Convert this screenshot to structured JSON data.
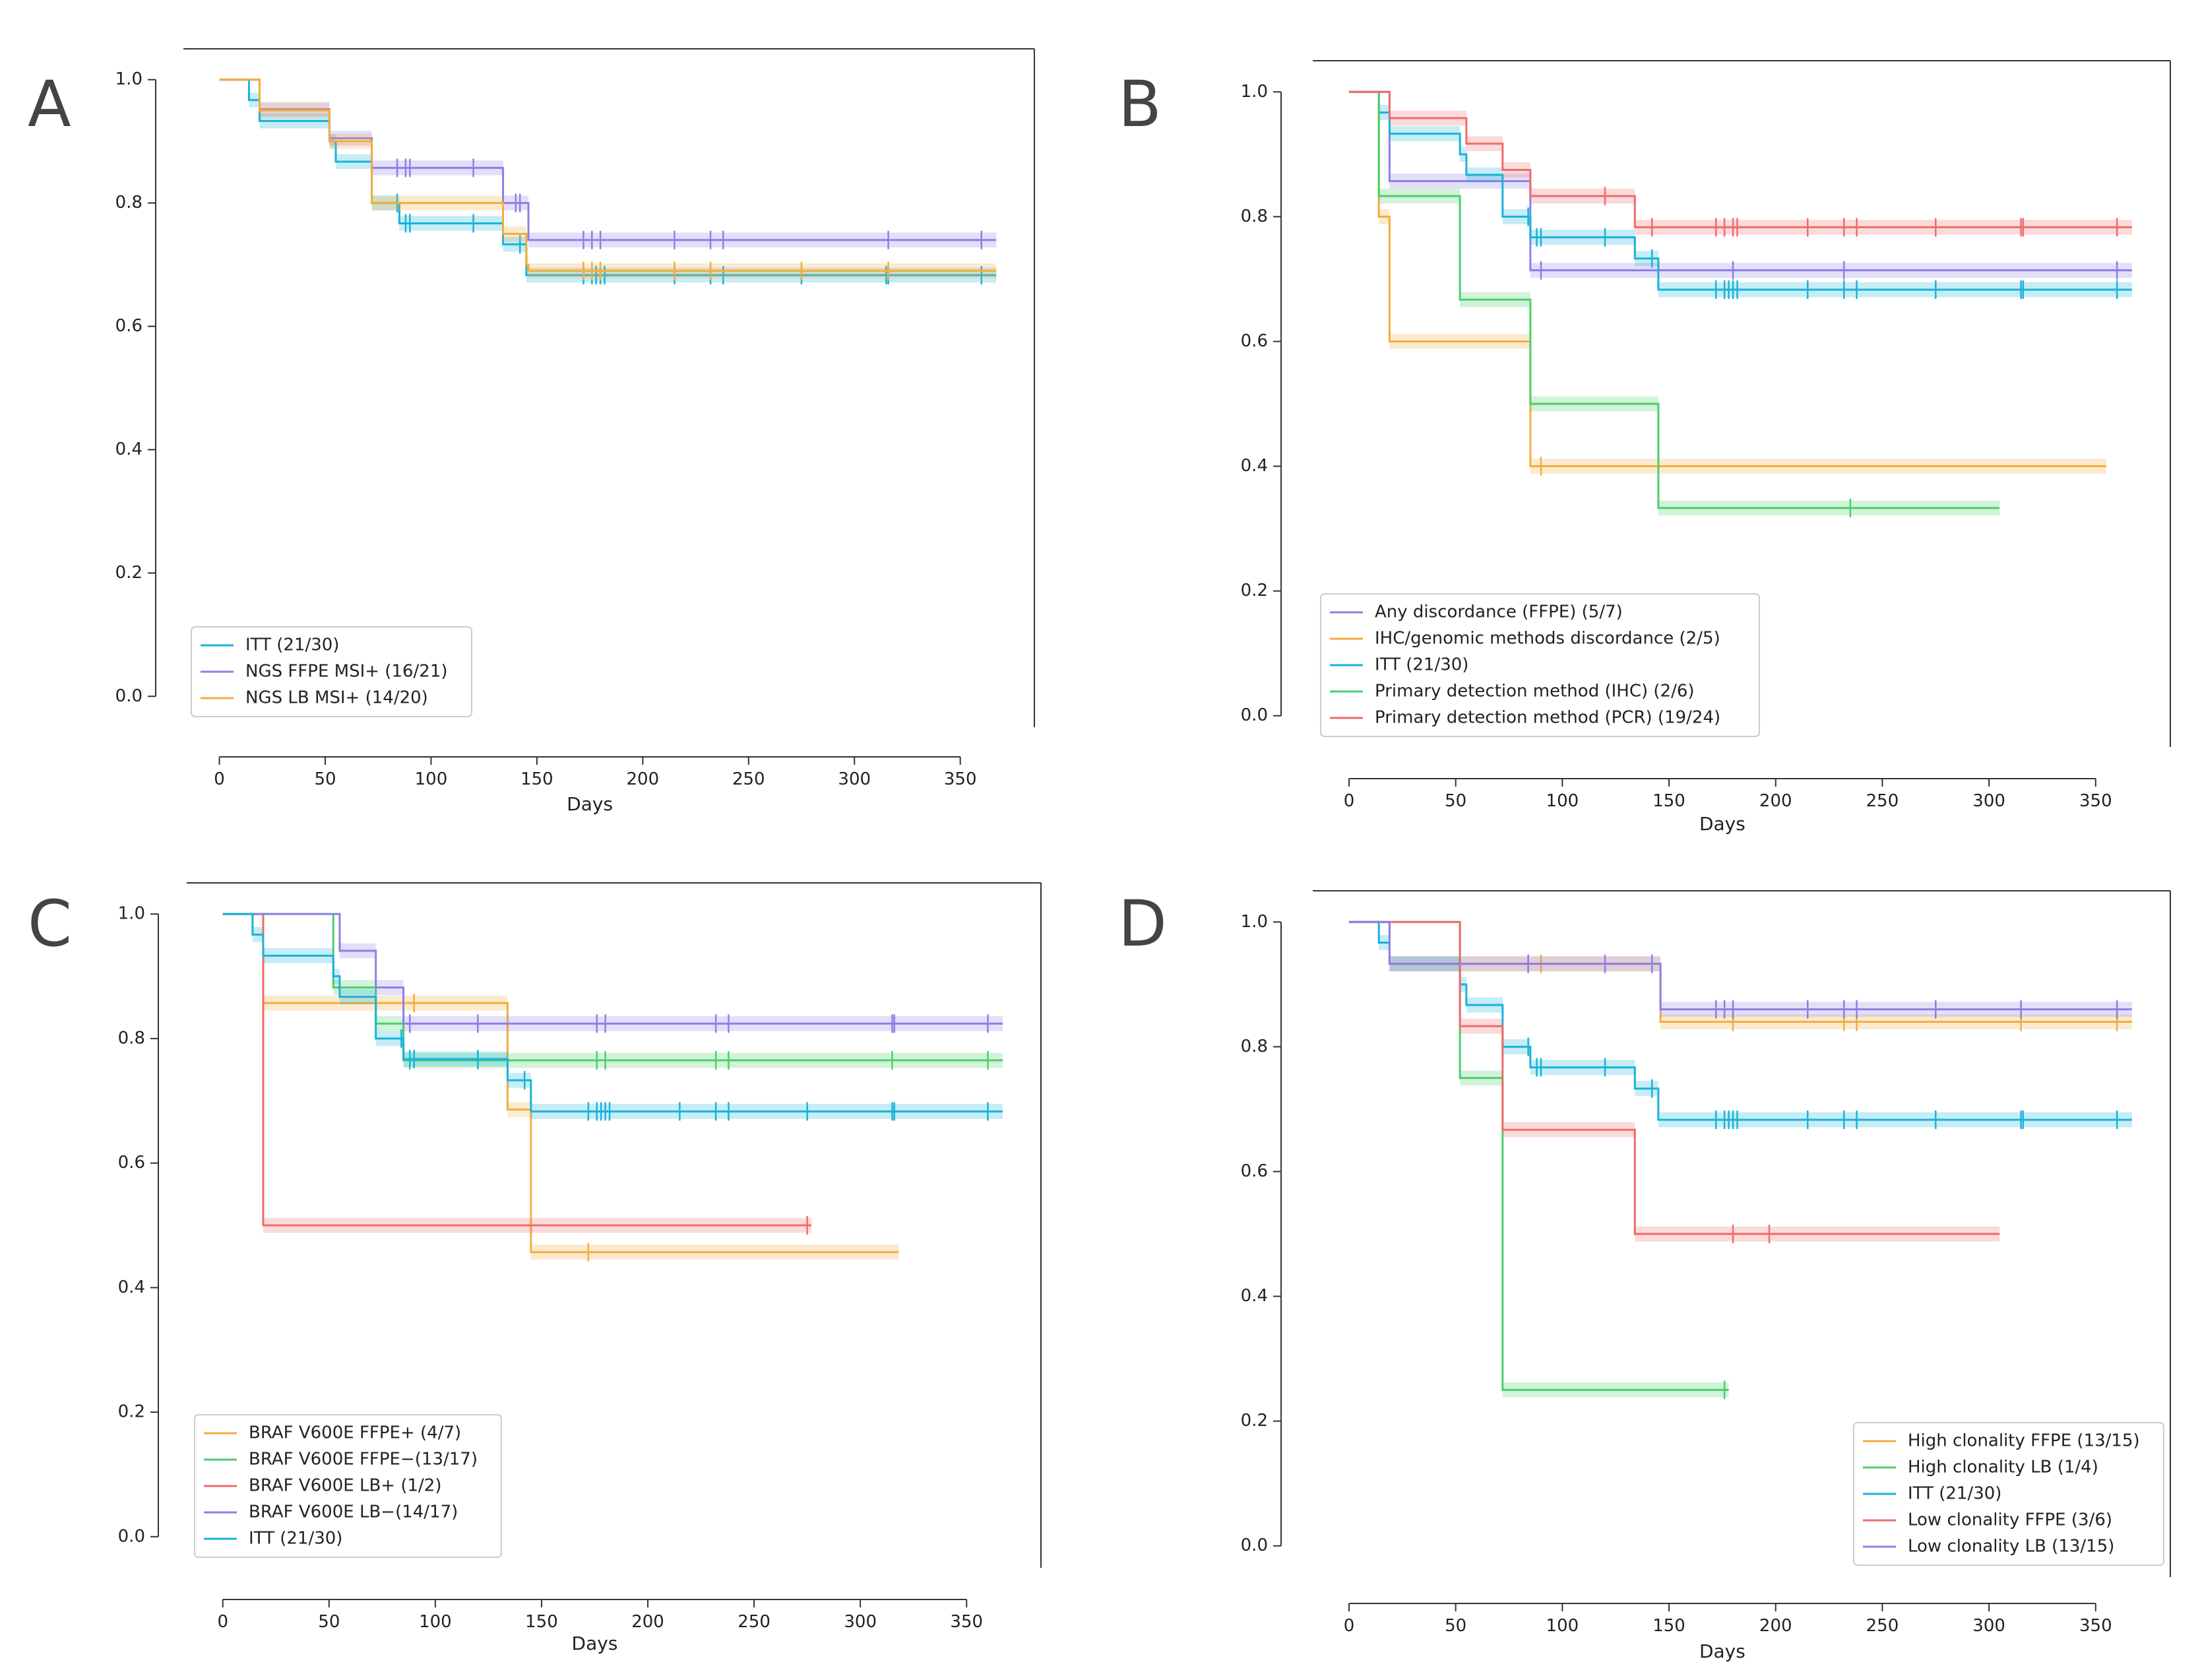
{
  "figure": {
    "background": "#ffffff"
  },
  "chart_data": [
    {
      "panel": "A",
      "type": "line",
      "subtype": "kaplan-meier",
      "xlabel": "Days",
      "ylabel": "",
      "xlim": [
        -17,
        385
      ],
      "ylim": [
        -0.05,
        1.05
      ],
      "xticks": [
        0,
        50,
        100,
        150,
        200,
        250,
        300,
        350
      ],
      "yticks": [
        0.0,
        0.2,
        0.4,
        0.6,
        0.8,
        1.0
      ],
      "xtick_labels": [
        "0",
        "50",
        "100",
        "150",
        "200",
        "250",
        "300",
        "350"
      ],
      "ytick_labels": [
        "0.0",
        "0.2",
        "0.4",
        "0.6",
        "0.8",
        "1.0"
      ],
      "legend_position": "lower-left",
      "series": [
        {
          "name": "ITT (21/30)",
          "color": "#1ab2d9",
          "steps": [
            [
              0,
              1.0
            ],
            [
              14,
              0.967
            ],
            [
              19,
              0.933
            ],
            [
              52,
              0.9
            ],
            [
              55,
              0.867
            ],
            [
              72,
              0.8
            ],
            [
              85,
              0.767
            ],
            [
              134,
              0.733
            ],
            [
              145,
              0.683
            ]
          ],
          "censors": [
            84,
            88,
            90,
            120,
            142,
            172,
            176,
            178,
            180,
            182,
            215,
            232,
            238,
            275,
            315,
            316,
            360
          ],
          "end": 367
        },
        {
          "name": "NGS FFPE MSI+ (16/21)",
          "color": "#8c7fe6",
          "steps": [
            [
              0,
              1.0
            ],
            [
              19,
              0.952
            ],
            [
              52,
              0.905
            ],
            [
              72,
              0.857
            ],
            [
              134,
              0.8
            ],
            [
              146,
              0.74
            ]
          ],
          "censors": [
            84,
            88,
            90,
            120,
            140,
            142,
            172,
            176,
            180,
            215,
            232,
            238,
            316,
            360
          ],
          "end": 367
        },
        {
          "name": "NGS LB MSI+ (14/20)",
          "color": "#f5ac3d",
          "steps": [
            [
              0,
              1.0
            ],
            [
              19,
              0.95
            ],
            [
              52,
              0.9
            ],
            [
              72,
              0.8
            ],
            [
              134,
              0.75
            ],
            [
              145,
              0.7
            ],
            [
              146,
              0.69
            ]
          ],
          "censors": [
            172,
            176,
            180,
            215,
            232,
            275,
            316
          ],
          "end": 367
        }
      ]
    },
    {
      "panel": "B",
      "type": "line",
      "subtype": "kaplan-meier",
      "xlabel": "Days",
      "ylabel": "",
      "xlim": [
        -17,
        385
      ],
      "ylim": [
        -0.05,
        1.05
      ],
      "xticks": [
        0,
        50,
        100,
        150,
        200,
        250,
        300,
        350
      ],
      "yticks": [
        0.0,
        0.2,
        0.4,
        0.6,
        0.8,
        1.0
      ],
      "xtick_labels": [
        "0",
        "50",
        "100",
        "150",
        "200",
        "250",
        "300",
        "350"
      ],
      "ytick_labels": [
        "0.0",
        "0.2",
        "0.4",
        "0.6",
        "0.8",
        "1.0"
      ],
      "legend_position": "lower-left",
      "series": [
        {
          "name": "Any discordance (FFPE) (5/7)",
          "color": "#8c7fe6",
          "steps": [
            [
              0,
              1.0
            ],
            [
              19,
              0.857
            ],
            [
              85,
              0.714
            ]
          ],
          "censors": [
            90,
            180,
            232,
            360
          ],
          "end": 367
        },
        {
          "name": "IHC/genomic methods discordance (2/5)",
          "color": "#f5ac3d",
          "steps": [
            [
              0,
              1.0
            ],
            [
              14,
              0.8
            ],
            [
              19,
              0.6
            ],
            [
              85,
              0.4
            ]
          ],
          "censors": [
            90
          ],
          "end": 355
        },
        {
          "name": "ITT (21/30)",
          "color": "#1ab2d9",
          "steps": [
            [
              0,
              1.0
            ],
            [
              14,
              0.967
            ],
            [
              19,
              0.933
            ],
            [
              52,
              0.9
            ],
            [
              55,
              0.867
            ],
            [
              72,
              0.8
            ],
            [
              85,
              0.767
            ],
            [
              134,
              0.733
            ],
            [
              145,
              0.683
            ]
          ],
          "censors": [
            84,
            88,
            90,
            120,
            142,
            172,
            176,
            178,
            180,
            182,
            215,
            232,
            238,
            275,
            315,
            316,
            360
          ],
          "end": 367
        },
        {
          "name": "Primary detection method (IHC) (2/6)",
          "color": "#4ccf6a",
          "steps": [
            [
              0,
              1.0
            ],
            [
              14,
              0.833
            ],
            [
              52,
              0.667
            ],
            [
              85,
              0.5
            ],
            [
              145,
              0.333
            ]
          ],
          "censors": [
            235
          ],
          "end": 305
        },
        {
          "name": "Primary detection method (PCR) (19/24)",
          "color": "#f06b6b",
          "steps": [
            [
              0,
              1.0
            ],
            [
              19,
              0.958
            ],
            [
              55,
              0.917
            ],
            [
              72,
              0.875
            ],
            [
              85,
              0.833
            ],
            [
              134,
              0.783
            ]
          ],
          "censors": [
            120,
            142,
            172,
            176,
            180,
            182,
            215,
            232,
            238,
            275,
            315,
            316,
            360
          ],
          "end": 367
        }
      ]
    },
    {
      "panel": "C",
      "type": "line",
      "subtype": "kaplan-meier",
      "xlabel": "Days",
      "ylabel": "",
      "xlim": [
        -17,
        385
      ],
      "ylim": [
        -0.05,
        1.05
      ],
      "xticks": [
        0,
        50,
        100,
        150,
        200,
        250,
        300,
        350
      ],
      "yticks": [
        0.0,
        0.2,
        0.4,
        0.6,
        0.8,
        1.0
      ],
      "xtick_labels": [
        "0",
        "50",
        "100",
        "150",
        "200",
        "250",
        "300",
        "350"
      ],
      "ytick_labels": [
        "0.0",
        "0.2",
        "0.4",
        "0.6",
        "0.8",
        "1.0"
      ],
      "legend_position": "lower-left",
      "series": [
        {
          "name": "BRAF V600E FFPE+ (4/7)",
          "color": "#f5ac3d",
          "steps": [
            [
              0,
              1.0
            ],
            [
              19,
              0.857
            ],
            [
              134,
              0.686
            ],
            [
              145,
              0.457
            ]
          ],
          "censors": [
            90,
            172
          ],
          "end": 318
        },
        {
          "name": "BRAF V600E FFPE−(13/17)",
          "color": "#4ccf6a",
          "steps": [
            [
              0,
              1.0
            ],
            [
              52,
              0.882
            ],
            [
              72,
              0.824
            ],
            [
              85,
              0.765
            ]
          ],
          "censors": [
            88,
            120,
            176,
            180,
            232,
            238,
            315,
            360
          ],
          "end": 367
        },
        {
          "name": "BRAF V600E LB+ (1/2)",
          "color": "#f06b6b",
          "steps": [
            [
              0,
              1.0
            ],
            [
              19,
              0.5
            ]
          ],
          "censors": [
            275
          ],
          "end": 277
        },
        {
          "name": "BRAF V600E LB−(14/17)",
          "color": "#8c7fe6",
          "steps": [
            [
              0,
              1.0
            ],
            [
              55,
              0.941
            ],
            [
              72,
              0.882
            ],
            [
              85,
              0.824
            ]
          ],
          "censors": [
            88,
            120,
            176,
            180,
            232,
            238,
            315,
            316,
            360
          ],
          "end": 367
        },
        {
          "name": "ITT (21/30)",
          "color": "#1ab2d9",
          "steps": [
            [
              0,
              1.0
            ],
            [
              14,
              0.967
            ],
            [
              19,
              0.933
            ],
            [
              52,
              0.9
            ],
            [
              55,
              0.867
            ],
            [
              72,
              0.8
            ],
            [
              85,
              0.767
            ],
            [
              134,
              0.733
            ],
            [
              145,
              0.683
            ]
          ],
          "censors": [
            84,
            88,
            90,
            120,
            142,
            172,
            176,
            178,
            180,
            182,
            215,
            232,
            238,
            275,
            315,
            316,
            360
          ],
          "end": 367
        }
      ]
    },
    {
      "panel": "D",
      "type": "line",
      "subtype": "kaplan-meier",
      "xlabel": "Days",
      "ylabel": "",
      "xlim": [
        -17,
        385
      ],
      "ylim": [
        -0.05,
        1.05
      ],
      "xticks": [
        0,
        50,
        100,
        150,
        200,
        250,
        300,
        350
      ],
      "yticks": [
        0.0,
        0.2,
        0.4,
        0.6,
        0.8,
        1.0
      ],
      "xtick_labels": [
        "0",
        "50",
        "100",
        "150",
        "200",
        "250",
        "300",
        "350"
      ],
      "ytick_labels": [
        "0.0",
        "0.2",
        "0.4",
        "0.6",
        "0.8",
        "1.0"
      ],
      "legend_position": "lower-right",
      "series": [
        {
          "name": "High clonality FFPE (13/15)",
          "color": "#f5ac3d",
          "steps": [
            [
              0,
              1.0
            ],
            [
              19,
              0.933
            ],
            [
              146,
              0.84
            ]
          ],
          "censors": [
            84,
            90,
            180,
            232,
            238,
            315,
            360
          ],
          "end": 367
        },
        {
          "name": "High clonality LB (1/4)",
          "color": "#4ccf6a",
          "steps": [
            [
              0,
              1.0
            ],
            [
              52,
              0.75
            ],
            [
              72,
              0.25
            ]
          ],
          "censors": [
            176
          ],
          "end": 178
        },
        {
          "name": "ITT (21/30)",
          "color": "#1ab2d9",
          "steps": [
            [
              0,
              1.0
            ],
            [
              14,
              0.967
            ],
            [
              19,
              0.933
            ],
            [
              52,
              0.9
            ],
            [
              55,
              0.867
            ],
            [
              72,
              0.8
            ],
            [
              85,
              0.767
            ],
            [
              134,
              0.733
            ],
            [
              145,
              0.683
            ]
          ],
          "censors": [
            84,
            88,
            90,
            120,
            142,
            172,
            176,
            178,
            180,
            182,
            215,
            232,
            238,
            275,
            315,
            316,
            360
          ],
          "end": 367
        },
        {
          "name": "Low clonality FFPE (3/6)",
          "color": "#f06b6b",
          "steps": [
            [
              0,
              1.0
            ],
            [
              52,
              0.833
            ],
            [
              72,
              0.667
            ],
            [
              134,
              0.5
            ]
          ],
          "censors": [
            180,
            197
          ],
          "end": 305
        },
        {
          "name": "Low clonality LB (13/15)",
          "color": "#8c7fe6",
          "steps": [
            [
              0,
              1.0
            ],
            [
              19,
              0.933
            ],
            [
              146,
              0.86
            ]
          ],
          "censors": [
            84,
            120,
            142,
            172,
            176,
            180,
            215,
            232,
            238,
            275,
            315,
            360
          ],
          "end": 367
        }
      ]
    }
  ]
}
